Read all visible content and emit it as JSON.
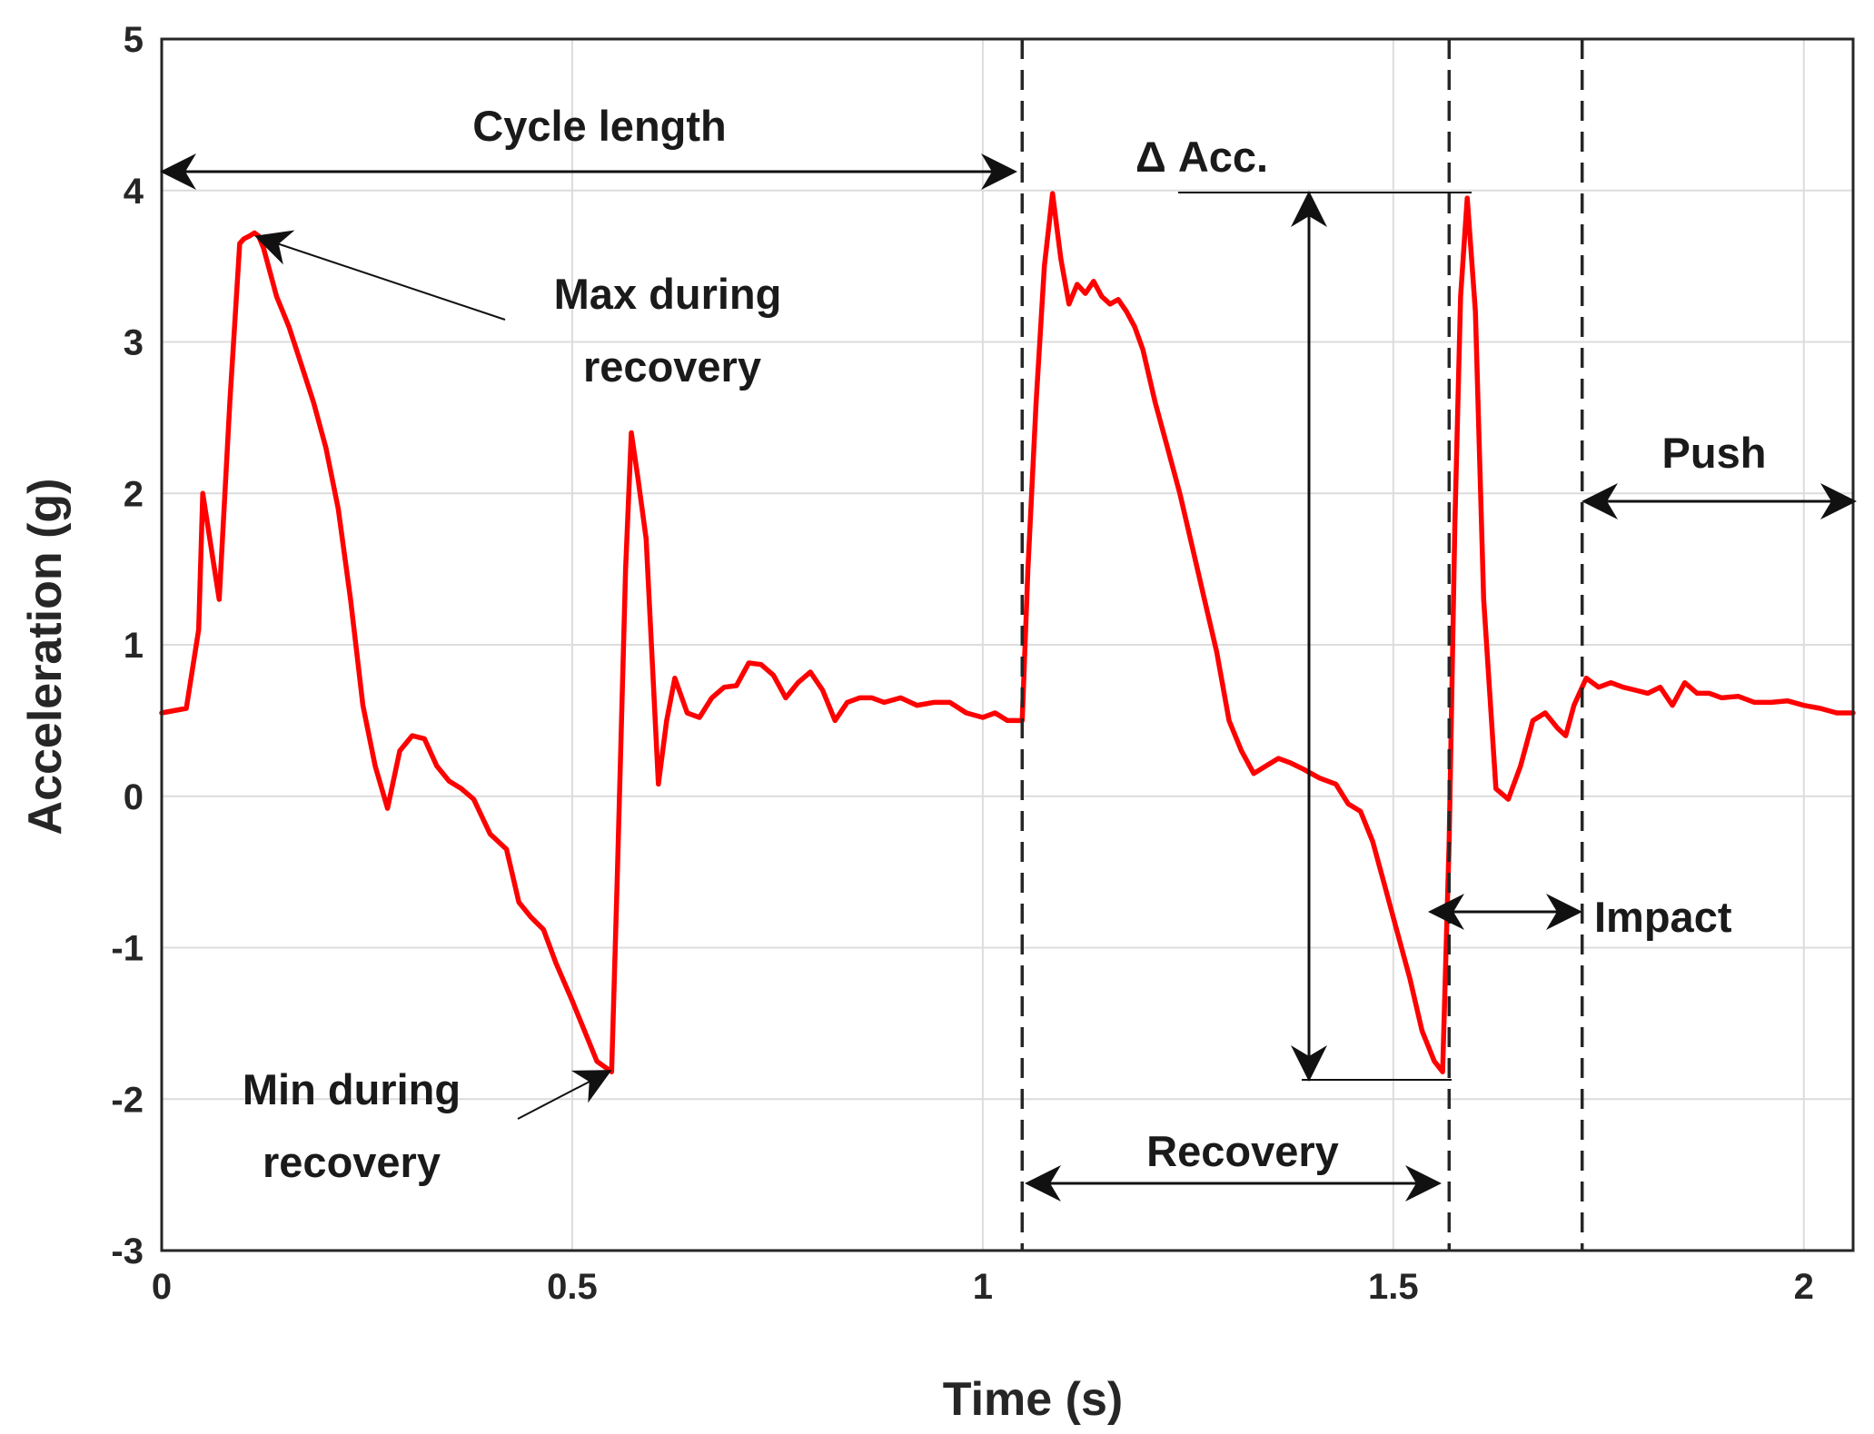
{
  "chart_data": {
    "type": "line",
    "xlabel": "Time (s)",
    "ylabel": "Acceleration (g)",
    "xlim": [
      0,
      2.06
    ],
    "ylim": [
      -3,
      5
    ],
    "xticks": [
      0,
      0.5,
      1,
      1.5,
      2
    ],
    "xtick_labels": [
      "0",
      "0.5",
      "1",
      "1.5",
      "2"
    ],
    "yticks": [
      -3,
      -2,
      -1,
      0,
      1,
      2,
      3,
      4,
      5
    ],
    "ytick_labels": [
      "-3",
      "-2",
      "-1",
      "0",
      "1",
      "2",
      "3",
      "4",
      "5"
    ],
    "grid": true,
    "series": [
      {
        "name": "Acceleration",
        "color": "#ff0000",
        "x": [
          0,
          0.03,
          0.045,
          0.05,
          0.07,
          0.083,
          0.095,
          0.1,
          0.107,
          0.113,
          0.118,
          0.124,
          0.13,
          0.14,
          0.155,
          0.17,
          0.185,
          0.2,
          0.215,
          0.23,
          0.245,
          0.26,
          0.275,
          0.29,
          0.305,
          0.32,
          0.335,
          0.35,
          0.365,
          0.38,
          0.4,
          0.42,
          0.435,
          0.45,
          0.465,
          0.48,
          0.5,
          0.515,
          0.53,
          0.548,
          0.555,
          0.565,
          0.572,
          0.58,
          0.59,
          0.605,
          0.615,
          0.625,
          0.64,
          0.655,
          0.67,
          0.685,
          0.7,
          0.715,
          0.73,
          0.745,
          0.76,
          0.775,
          0.79,
          0.805,
          0.82,
          0.835,
          0.85,
          0.865,
          0.88,
          0.9,
          0.92,
          0.94,
          0.96,
          0.98,
          1.0,
          1.015,
          1.03,
          1.048,
          1.055,
          1.065,
          1.075,
          1.085,
          1.095,
          1.105,
          1.115,
          1.125,
          1.135,
          1.145,
          1.155,
          1.165,
          1.175,
          1.185,
          1.195,
          1.21,
          1.225,
          1.24,
          1.255,
          1.27,
          1.285,
          1.3,
          1.315,
          1.33,
          1.345,
          1.36,
          1.375,
          1.39,
          1.41,
          1.43,
          1.445,
          1.46,
          1.475,
          1.49,
          1.505,
          1.52,
          1.535,
          1.55,
          1.56,
          1.568,
          1.575,
          1.582,
          1.59,
          1.6,
          1.61,
          1.625,
          1.64,
          1.655,
          1.67,
          1.685,
          1.7,
          1.71,
          1.72,
          1.735,
          1.75,
          1.765,
          1.78,
          1.795,
          1.81,
          1.825,
          1.84,
          1.855,
          1.87,
          1.885,
          1.9,
          1.92,
          1.94,
          1.96,
          1.98,
          2.0,
          2.02,
          2.04,
          2.06
        ],
        "y": [
          0.55,
          0.58,
          1.1,
          2.0,
          1.3,
          2.6,
          3.65,
          3.68,
          3.7,
          3.72,
          3.7,
          3.62,
          3.5,
          3.3,
          3.1,
          2.85,
          2.6,
          2.3,
          1.9,
          1.3,
          0.6,
          0.2,
          -0.08,
          0.3,
          0.4,
          0.38,
          0.2,
          0.1,
          0.05,
          -0.02,
          -0.25,
          -0.35,
          -0.7,
          -0.8,
          -0.88,
          -1.1,
          -1.35,
          -1.55,
          -1.75,
          -1.82,
          -0.5,
          1.5,
          2.4,
          2.1,
          1.7,
          0.08,
          0.5,
          0.78,
          0.55,
          0.52,
          0.65,
          0.72,
          0.73,
          0.88,
          0.87,
          0.8,
          0.65,
          0.75,
          0.82,
          0.7,
          0.5,
          0.62,
          0.65,
          0.65,
          0.62,
          0.65,
          0.6,
          0.62,
          0.62,
          0.55,
          0.52,
          0.55,
          0.5,
          0.5,
          1.5,
          2.6,
          3.5,
          3.98,
          3.55,
          3.25,
          3.38,
          3.32,
          3.4,
          3.3,
          3.25,
          3.28,
          3.2,
          3.1,
          2.95,
          2.6,
          2.3,
          2.0,
          1.65,
          1.3,
          0.95,
          0.5,
          0.3,
          0.15,
          0.2,
          0.25,
          0.22,
          0.18,
          0.12,
          0.08,
          -0.05,
          -0.1,
          -0.3,
          -0.6,
          -0.9,
          -1.2,
          -1.55,
          -1.75,
          -1.82,
          -0.3,
          1.8,
          3.3,
          3.95,
          3.2,
          1.3,
          0.05,
          -0.02,
          0.2,
          0.5,
          0.55,
          0.45,
          0.4,
          0.6,
          0.78,
          0.72,
          0.75,
          0.72,
          0.7,
          0.68,
          0.72,
          0.6,
          0.75,
          0.68,
          0.68,
          0.65,
          0.66,
          0.62,
          0.62,
          0.63,
          0.6,
          0.58,
          0.55,
          0.55
        ]
      }
    ],
    "markers": [
      {
        "label": "dashed line",
        "x": 1.048
      },
      {
        "label": "dashed line",
        "x": 1.568
      },
      {
        "label": "dashed line",
        "x": 1.73
      }
    ],
    "annotations": {
      "cycle_length": "Cycle length",
      "delta_acc": "Δ Acc.",
      "max_line1": "Max during",
      "max_line2": "recovery",
      "min_line1": "Min during",
      "min_line2": "recovery",
      "push": "Push",
      "impact": "Impact",
      "recovery": "Recovery"
    }
  }
}
